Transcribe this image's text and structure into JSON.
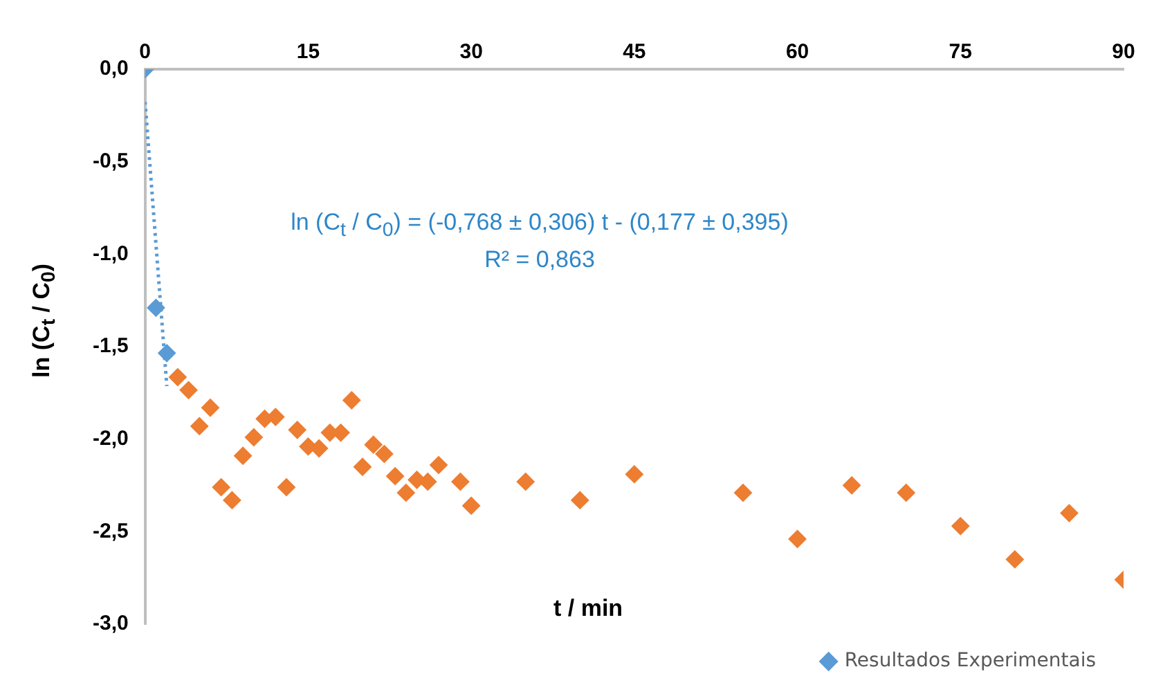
{
  "chart_data": {
    "type": "scatter",
    "xlabel": "t / min",
    "ylabel": "ln (C$_{t}$ / C$_{0}$)",
    "xlim": [
      0,
      90
    ],
    "xticks": [
      0,
      15,
      30,
      45,
      60,
      75,
      90
    ],
    "ylim": [
      -3,
      0
    ],
    "yticks": [
      {
        "value": 0,
        "label": "0,0"
      },
      {
        "value": -0.5,
        "label": "-0,5"
      },
      {
        "value": -1,
        "label": "-1,0"
      },
      {
        "value": -1.5,
        "label": "-1,5"
      },
      {
        "value": -2,
        "label": "-2,0"
      },
      {
        "value": -2.5,
        "label": "-2,5"
      },
      {
        "value": -3,
        "label": "-3,0"
      }
    ],
    "grid": false,
    "legend": "bottom right",
    "marker": "diamond",
    "annotations": [
      "ln (C$_{t}$ / C$_{0}$) = (-0,768 ± 0,306) t - (0,177 ± 0,395)",
      "R² = 0,863"
    ],
    "series": [
      {
        "type": "line",
        "color": "#5b9bd5",
        "line_style": "dotted",
        "marker": "none",
        "x": [
          0,
          2
        ],
        "values": [
          -0.177,
          -1.713
        ]
      },
      {
        "name": "Resultados Experimentais",
        "color": "#5b9bd5",
        "x": [
          0,
          1,
          2
        ],
        "values": [
          0,
          -1.29,
          -1.535
        ]
      },
      {
        "color": "#ed7d31",
        "x": [
          3,
          4,
          5,
          6,
          7,
          8,
          9,
          10,
          11,
          12,
          13,
          14,
          15,
          16,
          17,
          18,
          19,
          20,
          21,
          22,
          23,
          24,
          25,
          26,
          27,
          29,
          30,
          35,
          40,
          45,
          55,
          60,
          65,
          70,
          75,
          80,
          85,
          90
        ],
        "values": [
          -1.665,
          -1.735,
          -1.93,
          -1.83,
          -2.26,
          -2.33,
          -2.09,
          -1.99,
          -1.89,
          -1.88,
          -2.26,
          -1.95,
          -2.04,
          -2.05,
          -1.965,
          -1.965,
          -1.79,
          -2.15,
          -2.03,
          -2.08,
          -2.2,
          -2.29,
          -2.22,
          -2.23,
          -2.14,
          -2.23,
          -2.36,
          -2.23,
          -2.33,
          -2.19,
          -2.29,
          -2.54,
          -2.25,
          -2.29,
          -2.47,
          -2.65,
          -2.4,
          -2.76
        ]
      }
    ]
  }
}
